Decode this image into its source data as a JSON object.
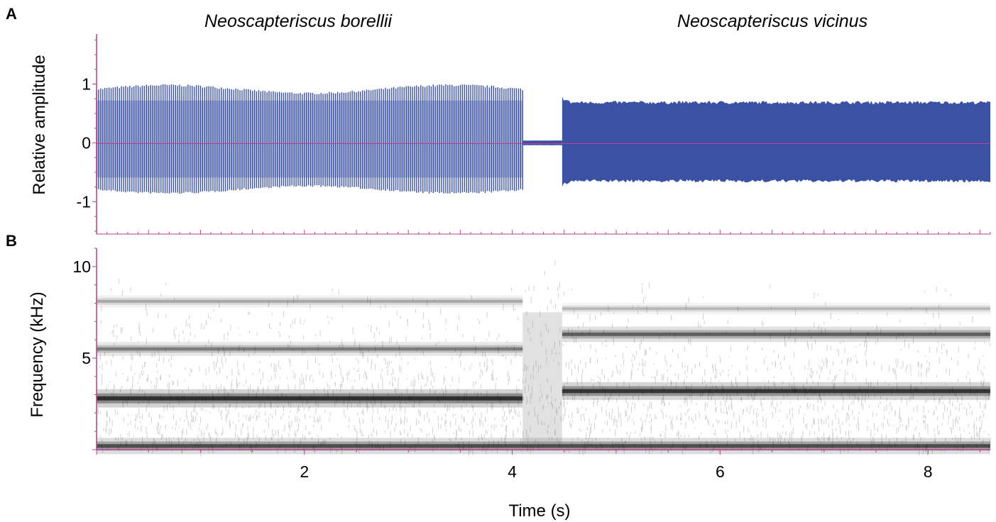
{
  "chart_data": [
    {
      "panel": "A",
      "type": "line",
      "ylabel": "Relative amplitude",
      "ylim": [
        -1.55,
        1.85
      ],
      "xlim": [
        0.0,
        8.6
      ],
      "yticks": [
        {
          "value": 1,
          "label": "1"
        },
        {
          "value": 0,
          "label": "0"
        },
        {
          "value": -1,
          "label": "-1"
        }
      ],
      "annotations": [
        {
          "text": "Neoscapteriscus borellii",
          "x": 2.0
        },
        {
          "text": "Neoscapteriscus vicinus",
          "x": 6.8
        }
      ],
      "series": [
        {
          "segment": "borellii call",
          "x_start": 0.0,
          "x_end": 4.1,
          "amplitude_upper": 1.0,
          "amplitude_lower": -0.87,
          "pulse_rate_hz": 50,
          "color": "#3a51a4"
        },
        {
          "segment": "gap",
          "x_start": 4.1,
          "x_end": 4.48,
          "amplitude_upper": 0.04,
          "amplitude_lower": -0.04,
          "color": "#3a51a4"
        },
        {
          "segment": "vicinus call",
          "x_start": 4.48,
          "x_end": 8.6,
          "amplitude_upper": 0.7,
          "amplitude_lower": -0.66,
          "color": "#3a51a4"
        }
      ],
      "baseline_color": "#b5418f"
    },
    {
      "panel": "B",
      "type": "heatmap",
      "xlabel": "Time (s)",
      "ylabel": "Frequency (kHz)",
      "xlim": [
        0.0,
        8.6
      ],
      "ylim": [
        0.0,
        11.0
      ],
      "xticks": [
        {
          "value": 2,
          "label": "2"
        },
        {
          "value": 4,
          "label": "4"
        },
        {
          "value": 6,
          "label": "6"
        },
        {
          "value": 8,
          "label": "8"
        }
      ],
      "yticks": [
        {
          "value": 5,
          "label": "5"
        },
        {
          "value": 10,
          "label": "10"
        }
      ],
      "bands": [
        {
          "x_start": 0.0,
          "x_end": 4.1,
          "freq_khz": 2.8,
          "intensity": 0.95
        },
        {
          "x_start": 0.0,
          "x_end": 4.1,
          "freq_khz": 5.5,
          "intensity": 0.5
        },
        {
          "x_start": 0.0,
          "x_end": 4.1,
          "freq_khz": 8.1,
          "intensity": 0.3
        },
        {
          "x_start": 4.48,
          "x_end": 8.6,
          "freq_khz": 3.2,
          "intensity": 0.9
        },
        {
          "x_start": 4.48,
          "x_end": 8.6,
          "freq_khz": 6.3,
          "intensity": 0.65
        },
        {
          "x_start": 4.48,
          "x_end": 8.6,
          "freq_khz": 7.7,
          "intensity": 0.25
        },
        {
          "x_start": 0.0,
          "x_end": 8.6,
          "freq_khz": 0.2,
          "intensity": 0.75
        }
      ],
      "colormap": "grayscale",
      "axis_color": "#b5418f"
    }
  ]
}
